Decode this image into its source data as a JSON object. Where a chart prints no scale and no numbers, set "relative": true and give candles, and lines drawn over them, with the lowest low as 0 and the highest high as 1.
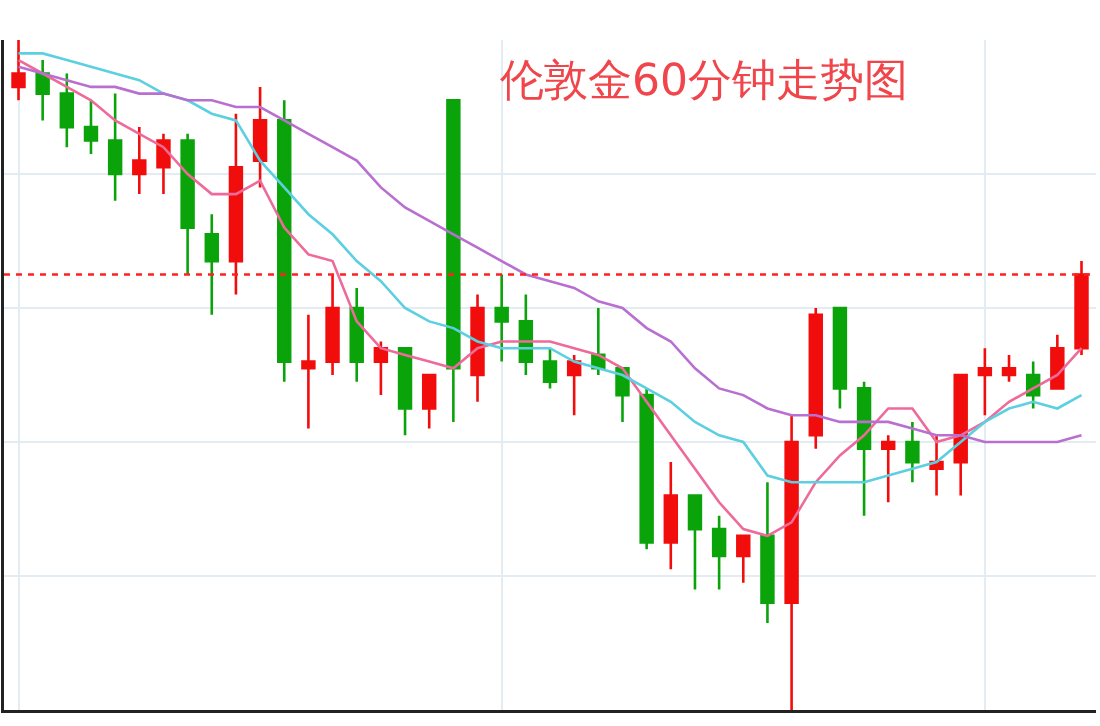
{
  "chart_data": {
    "type": "candlestick",
    "title": "伦敦金60分钟走势图",
    "relative": true,
    "grid": true,
    "categories": [
      null,
      null,
      null,
      null,
      null,
      null,
      null,
      null,
      null,
      null,
      null,
      null,
      null,
      null,
      null,
      null,
      null,
      null,
      null,
      null,
      null,
      null,
      null,
      null,
      null,
      null,
      null,
      null,
      null,
      null,
      null,
      null,
      null,
      null,
      null,
      null,
      null,
      null,
      null,
      null,
      null,
      null,
      null,
      null,
      null
    ],
    "ohlc": [
      [
        0.93,
        1.0,
        0.91,
        0.95
      ],
      [
        0.95,
        0.97,
        0.88,
        0.92
      ],
      [
        0.92,
        0.95,
        0.84,
        0.87
      ],
      [
        0.87,
        0.91,
        0.83,
        0.85
      ],
      [
        0.85,
        0.92,
        0.76,
        0.8
      ],
      [
        0.8,
        0.87,
        0.77,
        0.82
      ],
      [
        0.81,
        0.86,
        0.77,
        0.85
      ],
      [
        0.85,
        0.86,
        0.65,
        0.72
      ],
      [
        0.71,
        0.74,
        0.59,
        0.67
      ],
      [
        0.67,
        0.89,
        0.62,
        0.81
      ],
      [
        0.82,
        0.93,
        0.78,
        0.88
      ],
      [
        0.88,
        0.91,
        0.49,
        0.52
      ],
      [
        0.51,
        0.59,
        0.42,
        0.52
      ],
      [
        0.52,
        0.65,
        0.5,
        0.6
      ],
      [
        0.6,
        0.63,
        0.49,
        0.52
      ],
      [
        0.52,
        0.55,
        0.47,
        0.54
      ],
      [
        0.54,
        0.54,
        0.41,
        0.45
      ],
      [
        0.45,
        0.5,
        0.42,
        0.5
      ],
      [
        0.91,
        0.91,
        0.43,
        0.51
      ],
      [
        0.5,
        0.62,
        0.46,
        0.6
      ],
      [
        0.6,
        0.65,
        0.52,
        0.58
      ],
      [
        0.58,
        0.62,
        0.5,
        0.52
      ],
      [
        0.52,
        0.54,
        0.48,
        0.49
      ],
      [
        0.5,
        0.53,
        0.44,
        0.52
      ],
      [
        0.53,
        0.6,
        0.5,
        0.51
      ],
      [
        0.51,
        0.51,
        0.43,
        0.47
      ],
      [
        0.47,
        0.48,
        0.24,
        0.25
      ],
      [
        0.25,
        0.37,
        0.21,
        0.32
      ],
      [
        0.32,
        0.32,
        0.18,
        0.27
      ],
      [
        0.27,
        0.29,
        0.18,
        0.23
      ],
      [
        0.23,
        0.26,
        0.19,
        0.26
      ],
      [
        0.26,
        0.34,
        0.13,
        0.16
      ],
      [
        0.16,
        0.44,
        0.0,
        0.4
      ],
      [
        0.41,
        0.6,
        0.39,
        0.59
      ],
      [
        0.6,
        0.6,
        0.45,
        0.48
      ],
      [
        0.48,
        0.49,
        0.29,
        0.39
      ],
      [
        0.39,
        0.41,
        0.31,
        0.4
      ],
      [
        0.4,
        0.43,
        0.34,
        0.37
      ],
      [
        0.36,
        0.41,
        0.32,
        0.37
      ],
      [
        0.37,
        0.5,
        0.32,
        0.5
      ],
      [
        0.5,
        0.54,
        0.44,
        0.51
      ],
      [
        0.5,
        0.53,
        0.49,
        0.51
      ],
      [
        0.5,
        0.52,
        0.45,
        0.47
      ],
      [
        0.48,
        0.56,
        0.48,
        0.54
      ],
      [
        0.54,
        0.67,
        0.53,
        0.65
      ]
    ],
    "colors": [
      "#f20d0d",
      "#0aa40a",
      "#0aa40a",
      "#0aa40a",
      "#0aa40a",
      "#f20d0d",
      "#f20d0d",
      "#0aa40a",
      "#0aa40a",
      "#f20d0d",
      "#f20d0d",
      "#0aa40a",
      "#f20d0d",
      "#f20d0d",
      "#0aa40a",
      "#f20d0d",
      "#0aa40a",
      "#f20d0d",
      "#0aa40a",
      "#f20d0d",
      "#0aa40a",
      "#0aa40a",
      "#0aa40a",
      "#f20d0d",
      "#0aa40a",
      "#0aa40a",
      "#0aa40a",
      "#f20d0d",
      "#0aa40a",
      "#0aa40a",
      "#f20d0d",
      "#0aa40a",
      "#f20d0d",
      "#f20d0d",
      "#0aa40a",
      "#0aa40a",
      "#f20d0d",
      "#0aa40a",
      "#f20d0d",
      "#f20d0d",
      "#f20d0d",
      "#f20d0d",
      "#0aa40a",
      "#f20d0d",
      "#f20d0d"
    ],
    "series": [
      {
        "type": "line",
        "color": "#ee6a9a",
        "values": [
          0.97,
          0.95,
          0.93,
          0.91,
          0.88,
          0.86,
          0.84,
          0.8,
          0.77,
          0.77,
          0.79,
          0.72,
          0.68,
          0.67,
          0.58,
          0.54,
          0.53,
          0.52,
          0.51,
          0.54,
          0.55,
          0.55,
          0.55,
          0.54,
          0.53,
          0.51,
          0.46,
          0.41,
          0.36,
          0.31,
          0.27,
          0.26,
          0.28,
          0.34,
          0.38,
          0.41,
          0.45,
          0.45,
          0.4,
          0.41,
          0.43,
          0.46,
          0.48,
          0.5,
          0.54
        ]
      },
      {
        "type": "line",
        "color": "#5ccfe0",
        "values": [
          0.98,
          0.98,
          0.97,
          0.96,
          0.95,
          0.94,
          0.92,
          0.91,
          0.89,
          0.88,
          0.82,
          0.78,
          0.74,
          0.71,
          0.67,
          0.64,
          0.6,
          0.58,
          0.57,
          0.55,
          0.54,
          0.54,
          0.54,
          0.52,
          0.51,
          0.5,
          0.48,
          0.46,
          0.43,
          0.41,
          0.4,
          0.35,
          0.34,
          0.34,
          0.34,
          0.34,
          0.35,
          0.36,
          0.37,
          0.4,
          0.43,
          0.45,
          0.46,
          0.45,
          0.47
        ]
      },
      {
        "type": "line",
        "color": "#b86fd0",
        "values": [
          0.96,
          0.95,
          0.94,
          0.93,
          0.93,
          0.92,
          0.92,
          0.91,
          0.91,
          0.9,
          0.9,
          0.88,
          0.86,
          0.84,
          0.82,
          0.78,
          0.75,
          0.73,
          0.71,
          0.69,
          0.67,
          0.65,
          0.64,
          0.63,
          0.61,
          0.6,
          0.57,
          0.55,
          0.51,
          0.48,
          0.47,
          0.45,
          0.44,
          0.44,
          0.43,
          0.43,
          0.43,
          0.42,
          0.41,
          0.41,
          0.4,
          0.4,
          0.4,
          0.4,
          0.41
        ]
      }
    ],
    "ref_lines": [
      {
        "axis": "y",
        "value": 0.65,
        "color": "#ff2020",
        "line_style": "dotted"
      }
    ]
  }
}
